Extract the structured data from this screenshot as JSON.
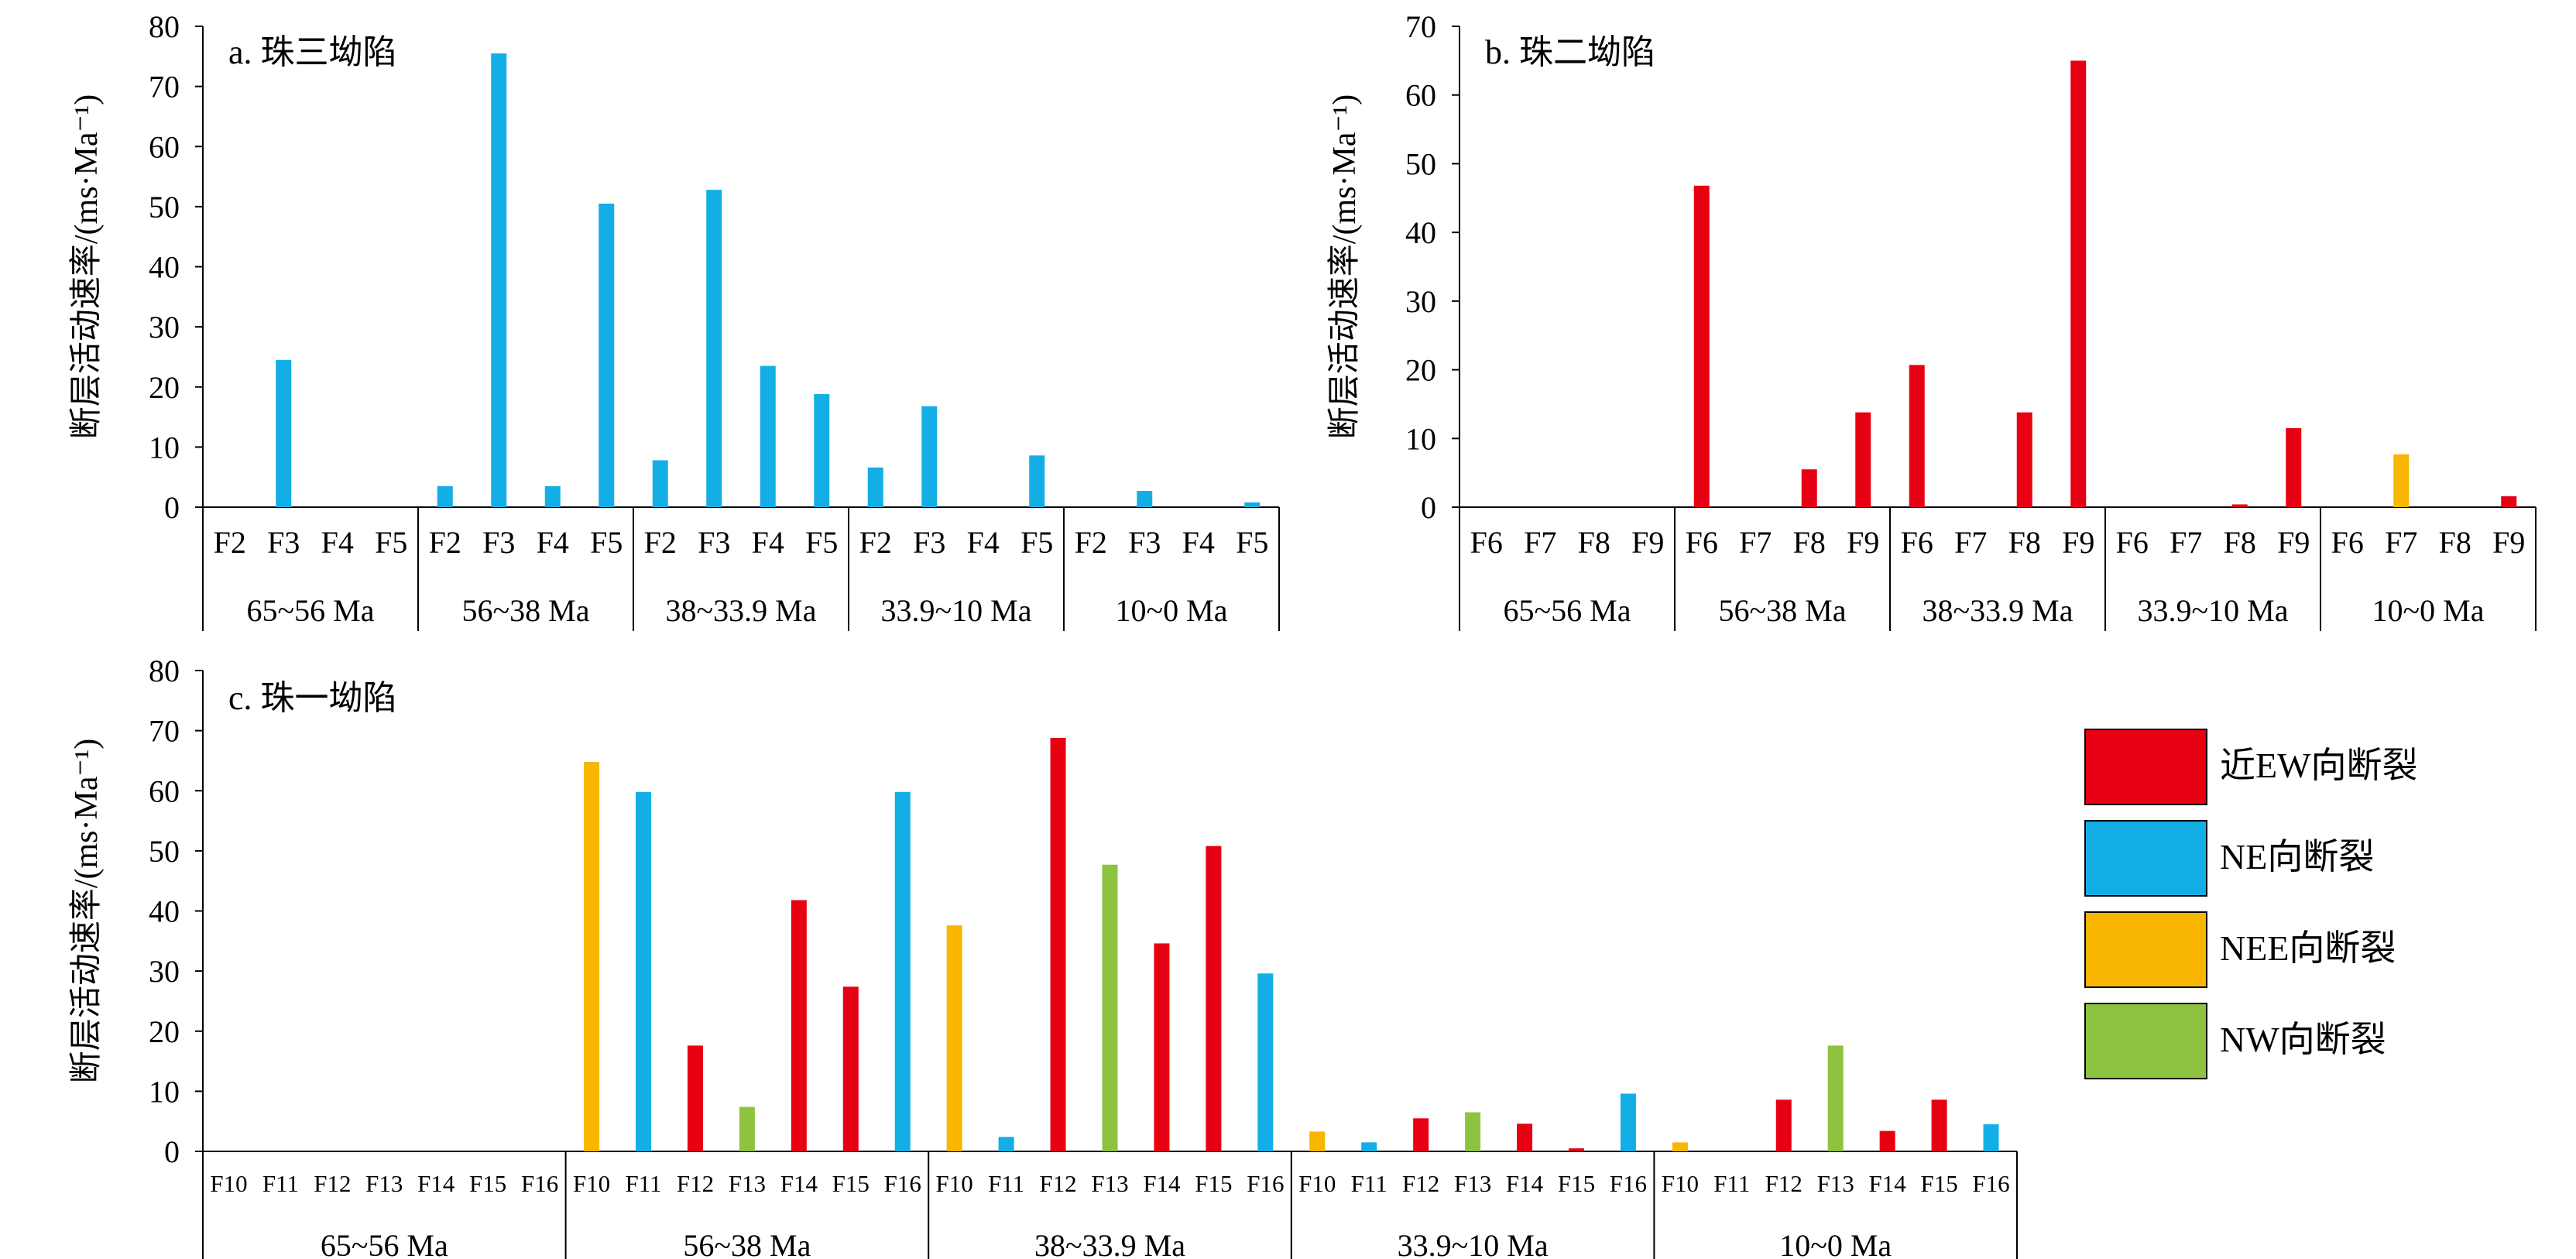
{
  "colors": {
    "near_ew": "#e60012",
    "ne": "#13aee6",
    "nee": "#f8b600",
    "nw": "#8dc340"
  },
  "legend": {
    "items": [
      {
        "label": "近EW向断裂",
        "color_key": "near_ew"
      },
      {
        "label": "NE向断裂",
        "color_key": "ne"
      },
      {
        "label": "NEE向断裂",
        "color_key": "nee"
      },
      {
        "label": "NW向断裂",
        "color_key": "nw"
      }
    ]
  },
  "chart_data": [
    {
      "type": "bar",
      "title": "a. 珠三坳陷",
      "ylabel": "断层活动速率/(ms·Ma⁻¹)",
      "ylim": [
        0,
        80
      ],
      "yticks": [
        0,
        10,
        20,
        30,
        40,
        50,
        60,
        70,
        80
      ],
      "periods": [
        "65~56 Ma",
        "56~38 Ma",
        "38~33.9 Ma",
        "33.9~10 Ma",
        "10~0 Ma"
      ],
      "faults": [
        "F2",
        "F3",
        "F4",
        "F5"
      ],
      "fault_colors": [
        "ne",
        "ne",
        "ne",
        "ne"
      ],
      "values": [
        [
          0,
          24.5,
          0,
          0
        ],
        [
          3.5,
          75.5,
          3.5,
          50.5
        ],
        [
          7.8,
          52.8,
          23.5,
          18.8
        ],
        [
          6.6,
          16.8,
          0,
          8.6
        ],
        [
          0,
          2.7,
          0,
          0.8
        ]
      ]
    },
    {
      "type": "bar",
      "title": "b. 珠二坳陷",
      "ylabel": "断层活动速率/(ms·Ma⁻¹)",
      "ylim": [
        0,
        70
      ],
      "yticks": [
        0,
        10,
        20,
        30,
        40,
        50,
        60,
        70
      ],
      "periods": [
        "65~56 Ma",
        "56~38 Ma",
        "38~33.9 Ma",
        "33.9~10 Ma",
        "10~0 Ma"
      ],
      "faults": [
        "F6",
        "F7",
        "F8",
        "F9"
      ],
      "fault_colors": [
        "near_ew",
        "nee",
        "near_ew",
        "near_ew"
      ],
      "values": [
        [
          0,
          0,
          0,
          0
        ],
        [
          46.8,
          0,
          5.5,
          13.8
        ],
        [
          20.7,
          0,
          13.8,
          65
        ],
        [
          0,
          0,
          0.4,
          11.5
        ],
        [
          0,
          7.7,
          0,
          1.6
        ]
      ]
    },
    {
      "type": "bar",
      "title": "c. 珠一坳陷",
      "ylabel": "断层活动速率/(ms·Ma⁻¹)",
      "ylim": [
        0,
        80
      ],
      "yticks": [
        0,
        10,
        20,
        30,
        40,
        50,
        60,
        70,
        80
      ],
      "periods": [
        "65~56 Ma",
        "56~38 Ma",
        "38~33.9 Ma",
        "33.9~10 Ma",
        "10~0 Ma"
      ],
      "faults": [
        "F10",
        "F11",
        "F12",
        "F13",
        "F14",
        "F15",
        "F16"
      ],
      "fault_colors": [
        "nee",
        "ne",
        "near_ew",
        "nw",
        "near_ew",
        "near_ew",
        "ne"
      ],
      "values": [
        [
          0,
          0,
          0,
          0,
          0,
          0,
          0
        ],
        [
          64.8,
          59.8,
          17.6,
          7.4,
          41.8,
          27.4,
          59.8
        ],
        [
          37.6,
          2.4,
          68.8,
          47.7,
          34.6,
          50.8,
          29.6
        ],
        [
          3.3,
          1.5,
          5.5,
          6.5,
          4.6,
          0.5,
          9.6
        ],
        [
          1.5,
          0,
          8.6,
          17.6,
          3.4,
          8.6,
          4.5
        ]
      ]
    }
  ]
}
